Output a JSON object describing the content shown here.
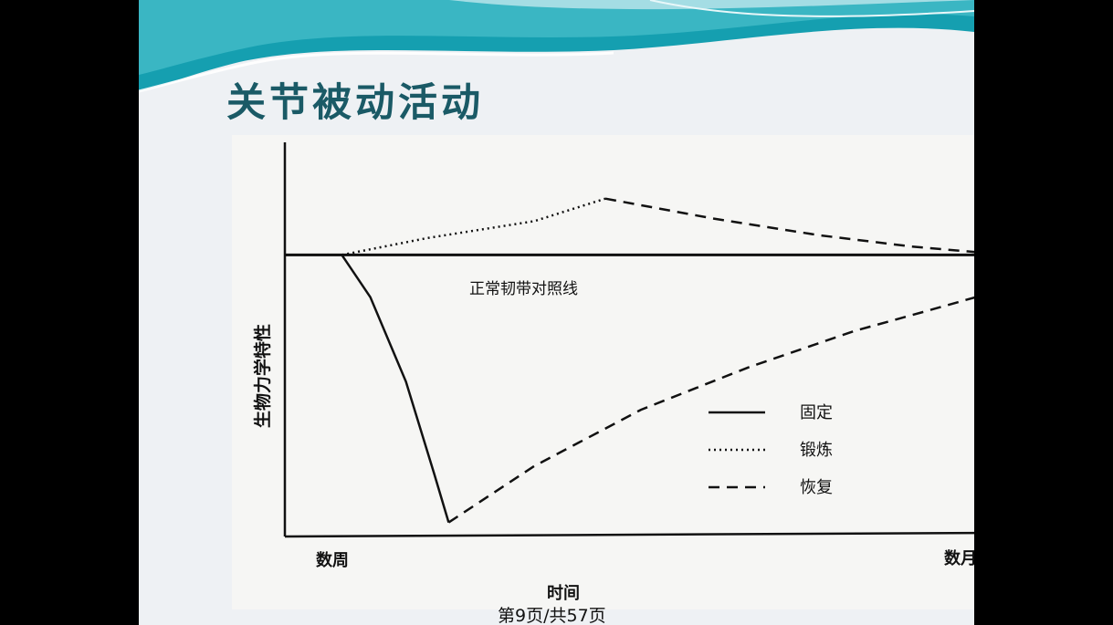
{
  "slide": {
    "title": "关节被动活动",
    "footer": "第9页/共57页"
  },
  "chart_data": {
    "type": "line",
    "title": "",
    "xlabel": "时间",
    "ylabel": "生物力学特性",
    "x_tick_labels": [
      "数周",
      "数月"
    ],
    "reference_label": "正常韧带对照线",
    "grid": false,
    "legend_position": "right",
    "x_range": [
      0,
      1
    ],
    "y_range": [
      -1,
      0.4
    ],
    "series": [
      {
        "name": "固定",
        "style": "solid",
        "points": [
          [
            0,
            0
          ],
          [
            0.08,
            0
          ],
          [
            0.12,
            -0.15
          ],
          [
            0.17,
            -0.45
          ],
          [
            0.21,
            -0.78
          ],
          [
            0.23,
            -0.95
          ]
        ]
      },
      {
        "name": "锻炼",
        "style": "dotted",
        "points": [
          [
            0.08,
            0
          ],
          [
            0.2,
            0.06
          ],
          [
            0.35,
            0.12
          ],
          [
            0.45,
            0.2
          ]
        ]
      },
      {
        "name": "恢复",
        "style": "dashed",
        "points": [
          [
            0.23,
            -0.95
          ],
          [
            0.35,
            -0.75
          ],
          [
            0.5,
            -0.55
          ],
          [
            0.65,
            -0.4
          ],
          [
            0.8,
            -0.27
          ],
          [
            0.9,
            -0.2
          ],
          [
            0.97,
            -0.15
          ]
        ]
      },
      {
        "name": "恢复",
        "style": "dashed",
        "points": [
          [
            0.45,
            0.2
          ],
          [
            0.6,
            0.13
          ],
          [
            0.75,
            0.07
          ],
          [
            0.88,
            0.03
          ],
          [
            0.97,
            0.01
          ]
        ]
      }
    ],
    "legend": [
      {
        "label": "固定",
        "style": "solid"
      },
      {
        "label": "锻炼",
        "style": "dotted"
      },
      {
        "label": "恢复",
        "style": "dashed"
      }
    ]
  }
}
